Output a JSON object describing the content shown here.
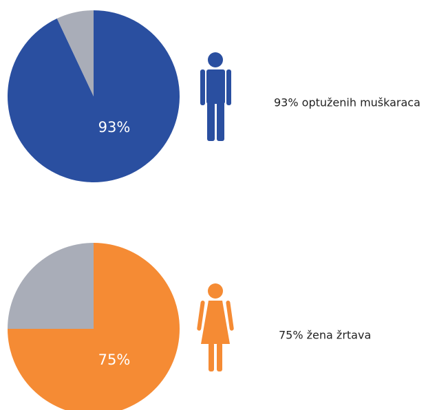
{
  "chart_data": [
    {
      "type": "pie",
      "values": [
        93,
        7
      ],
      "value_labels": [
        "93%",
        null
      ],
      "colors": [
        "#2a4fa0",
        "#a9adb8"
      ],
      "annotation": "93% optuženih muškaraca"
    },
    {
      "type": "pie",
      "values": [
        75,
        25
      ],
      "value_labels": [
        "75%",
        null
      ],
      "colors": [
        "#f58b34",
        "#a9adb8"
      ],
      "annotation": "75% žena žrtava"
    }
  ]
}
